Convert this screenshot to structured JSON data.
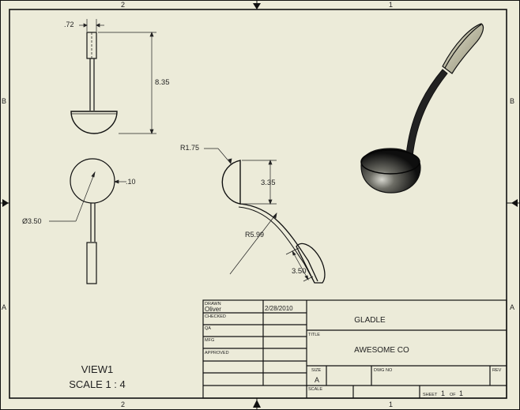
{
  "colors": {
    "paper": "#ecebd9",
    "ink": "#111111",
    "shade_dark": "#1a1a1a",
    "shade_light": "#9a9a86"
  },
  "zones": {
    "top_left": "2",
    "top_right": "1",
    "bottom_left": "2",
    "bottom_right": "1",
    "left_upper": "B",
    "left_lower": "A",
    "right_upper": "B",
    "right_lower": "A"
  },
  "dims": {
    "top_width": ".72",
    "height": "8.35",
    "bowl_dia": "Ø3.50",
    "wall": ".10",
    "rim_radius": "R1.75",
    "bowl_depth": "3.35",
    "handle_radius": "R5.99",
    "tip_width": "3.50"
  },
  "view": {
    "name": "VIEW1",
    "scale": "SCALE 1 : 4"
  },
  "title_block": {
    "drawn_label": "DRAWN",
    "drawn_by": "Oliver",
    "drawn_date": "2/28/2010",
    "checked_label": "CHECKED",
    "qa_label": "QA",
    "mfg_label": "MFG",
    "approved_label": "APPROVED",
    "part_name": "GLADLE",
    "title_label": "TITLE",
    "company": "AWESOME CO",
    "size_label": "SIZE",
    "size_value": "A",
    "dwg_label": "DWG NO",
    "rev_label": "REV",
    "scale_label": "SCALE",
    "sheet_label": "SHEET",
    "sheet_num": "1",
    "of_label": "OF",
    "sheet_total": "1"
  }
}
